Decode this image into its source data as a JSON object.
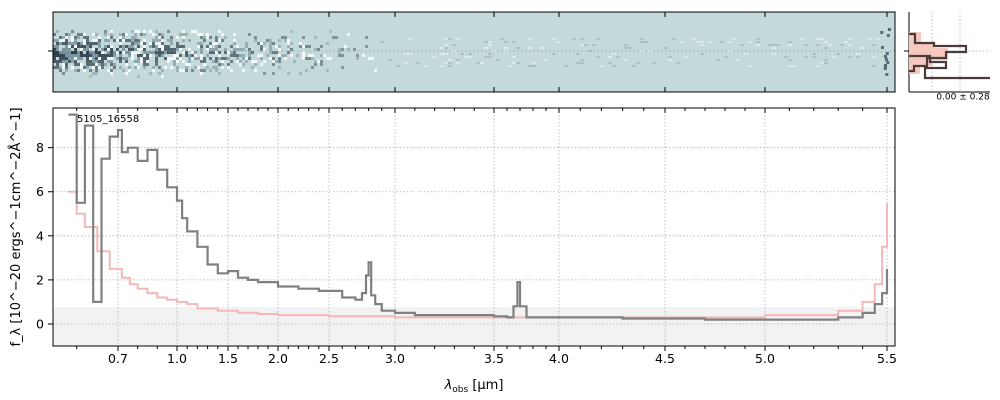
{
  "figure": {
    "object_label": "5105_16558",
    "xlabel_main": "λ",
    "xlabel_sub": "obs",
    "xlabel_unit": " [μm]",
    "ylabel": "f_λ [10^−20 ergs^−1cm^−2Å^−1]",
    "hist_label": "0.00 ± 0.28"
  },
  "colors": {
    "spectrum": "#808080",
    "model": "#f4b8b8",
    "grid": "#b0b0b0",
    "image_bg": "#c4d9d9",
    "hist_line": "#4a3a3a",
    "hist_fill": "#f7c8c0"
  },
  "chart_data": {
    "type": "line",
    "xaxis": {
      "scale": "sqrt-like (non-linear wavelength)",
      "range": [
        0.55,
        5.52
      ],
      "major_ticks": [
        0.7,
        1.0,
        1.5,
        2.0,
        2.5,
        3.0,
        3.5,
        4.0,
        4.5,
        5.0,
        5.5
      ],
      "tick_labels": [
        "0.7",
        "1.0",
        "1.5",
        "2.0",
        "2.5",
        "3.0",
        "3.5",
        "4.0",
        "4.5",
        "5.0",
        "5.5"
      ],
      "minor_ticks": [
        0.6,
        0.8,
        0.9,
        1.1,
        1.2,
        1.3,
        1.4,
        1.6,
        1.7,
        1.8,
        1.9,
        2.1,
        2.2,
        2.3,
        2.4,
        2.6,
        2.7,
        2.8,
        2.9,
        3.1,
        3.2,
        3.3,
        3.4,
        3.6,
        3.7,
        3.8,
        3.9,
        4.1,
        4.2,
        4.3,
        4.4,
        4.6,
        4.7,
        4.8,
        4.9,
        5.1,
        5.2,
        5.3,
        5.4
      ]
    },
    "yaxis": {
      "range": [
        -1,
        9.8
      ],
      "ticks": [
        0,
        2,
        4,
        6,
        8
      ],
      "tick_labels": [
        "0",
        "2",
        "4",
        "6",
        "8"
      ]
    },
    "grid": true,
    "series": [
      {
        "role": "spectrum",
        "style": "steps",
        "x": [
          0.58,
          0.6,
          0.62,
          0.64,
          0.66,
          0.68,
          0.7,
          0.72,
          0.75,
          0.8,
          0.85,
          0.9,
          0.95,
          1.0,
          1.05,
          1.1,
          1.2,
          1.3,
          1.4,
          1.5,
          1.6,
          1.7,
          1.8,
          2.0,
          2.2,
          2.4,
          2.6,
          2.7,
          2.75,
          2.78,
          2.8,
          2.82,
          2.85,
          2.9,
          3.0,
          3.1,
          3.3,
          3.5,
          3.6,
          3.65,
          3.68,
          3.7,
          3.75,
          3.9,
          4.1,
          4.3,
          4.5,
          4.7,
          4.9,
          5.1,
          5.3,
          5.4,
          5.45,
          5.48,
          5.5
        ],
        "y": [
          9.5,
          5.5,
          9.0,
          1.0,
          7.5,
          8.5,
          8.8,
          7.8,
          8.0,
          7.4,
          7.9,
          7.0,
          6.2,
          5.6,
          4.8,
          4.2,
          3.5,
          2.7,
          2.3,
          2.4,
          2.1,
          2.0,
          1.9,
          1.7,
          1.6,
          1.5,
          1.2,
          1.1,
          1.4,
          2.2,
          2.8,
          1.3,
          0.9,
          0.6,
          0.5,
          0.4,
          0.4,
          0.35,
          0.3,
          0.8,
          1.9,
          0.8,
          0.3,
          0.3,
          0.3,
          0.25,
          0.25,
          0.2,
          0.2,
          0.2,
          0.3,
          0.5,
          0.9,
          1.4,
          2.5
        ]
      },
      {
        "role": "model",
        "style": "steps",
        "x": [
          0.58,
          0.6,
          0.62,
          0.65,
          0.68,
          0.72,
          0.76,
          0.8,
          0.85,
          0.9,
          0.95,
          1.0,
          1.1,
          1.2,
          1.4,
          1.6,
          1.8,
          2.0,
          2.5,
          3.0,
          3.5,
          4.0,
          4.5,
          5.0,
          5.3,
          5.4,
          5.45,
          5.48,
          5.5
        ],
        "y": [
          6.0,
          5.0,
          4.4,
          3.3,
          2.5,
          2.1,
          1.8,
          1.6,
          1.4,
          1.2,
          1.1,
          1.0,
          0.9,
          0.7,
          0.6,
          0.5,
          0.45,
          0.4,
          0.35,
          0.3,
          0.3,
          0.3,
          0.3,
          0.4,
          0.6,
          1.0,
          1.8,
          3.5,
          5.5
        ]
      }
    ]
  }
}
